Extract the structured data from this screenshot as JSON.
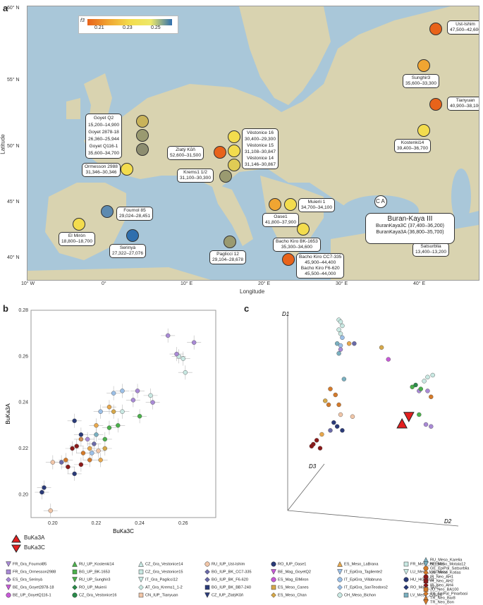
{
  "panels": {
    "a": "a",
    "b": "b",
    "c": "c"
  },
  "map": {
    "xlabel": "Longitude",
    "ylabel": "Latitude",
    "lon_ticks": [
      "10° W",
      "0°",
      "10° E",
      "20° E",
      "30° E",
      "40° E"
    ],
    "lat_ticks": [
      "60° N",
      "55° N",
      "50° N",
      "45° N",
      "40° N"
    ],
    "scale_title": "f3",
    "scale_ticks": [
      "0.21",
      "0.23",
      "0.25"
    ],
    "colors": {
      "sea": "#a9c7d9",
      "land": "#d9d3b0",
      "low": "#e8631a",
      "mid": "#f3dc4d",
      "high": "#2f6fae"
    },
    "sites": [
      {
        "name": "Ust-Ishim",
        "dates": "47,500–42,600"
      },
      {
        "name": "Sunghir3",
        "dates": "35,600–33,300"
      },
      {
        "name": "Tianyuan",
        "dates": "40,900–38,100"
      },
      {
        "name": "Kostenki14",
        "dates": "39,400–36,700"
      },
      {
        "name": "Goyet Q2",
        "dates": "15,200–14,900"
      },
      {
        "name": "Goyet 2878-18",
        "dates": "26,360–25,944"
      },
      {
        "name": "Goyet Q116-1",
        "dates": "35,600–34,700"
      },
      {
        "name": "Ormesson 2988",
        "dates": "31,346–30,346"
      },
      {
        "name": "Zlatý Kůň",
        "dates": "52,600–31,500"
      },
      {
        "name": "Věstonice 16",
        "dates": "30,400–29,300"
      },
      {
        "name": "Věstonice 15",
        "dates": "31,108–30,847"
      },
      {
        "name": "Věstonice 14",
        "dates": "31,146–30,867"
      },
      {
        "name": "Krems1 1/2",
        "dates": "31,100–30,300"
      },
      {
        "name": "Fournol 85",
        "dates": "29,024–28,451"
      },
      {
        "name": "Muierii 1",
        "dates": "34,700–34,100"
      },
      {
        "name": "Oase1",
        "dates": "41,800–37,900"
      },
      {
        "name": "El Mirón",
        "dates": "18,800–18,700"
      },
      {
        "name": "Serinyà",
        "dates": "27,322–27,076"
      },
      {
        "name": "Bacho Kiro BK-1653",
        "dates": "35,300–34,600"
      },
      {
        "name": "Paglicci 12",
        "dates": "29,104–28,678"
      },
      {
        "name": "Bacho Kiro CC7-335",
        "dates": "45,900–44,400"
      },
      {
        "name": "Bacho Kiro F6-620",
        "dates": "45,500–44,000"
      },
      {
        "name": "Satsurblia",
        "dates": "13,400–13,200"
      }
    ],
    "buran": {
      "title": "Buran-Kaya III",
      "line1": "BuranKaya3C (37,400–36,200)",
      "line2": "BuranKaya3A (36,800–35,700)",
      "ca": "C A"
    }
  },
  "chart_data": [
    {
      "type": "scatter",
      "panel": "b",
      "xlabel": "BuKa3C",
      "ylabel": "BuKa3A",
      "xlim": [
        0.19,
        0.275
      ],
      "ylim": [
        0.19,
        0.28
      ],
      "xticks": [
        "0.20",
        "0.22",
        "0.24",
        "0.26"
      ],
      "yticks": [
        "0.20",
        "0.22",
        "0.24",
        "0.26",
        "0.28"
      ],
      "points": [
        {
          "x": 0.265,
          "y": 0.266,
          "c": "#a98ad6"
        },
        {
          "x": 0.253,
          "y": 0.269,
          "c": "#a98ad6"
        },
        {
          "x": 0.258,
          "y": 0.26,
          "c": "#c9e9e3"
        },
        {
          "x": 0.26,
          "y": 0.259,
          "c": "#c9e9e3"
        },
        {
          "x": 0.257,
          "y": 0.261,
          "c": "#a98ad6"
        },
        {
          "x": 0.261,
          "y": 0.253,
          "c": "#c9e9e3"
        },
        {
          "x": 0.239,
          "y": 0.245,
          "c": "#a98ad6"
        },
        {
          "x": 0.245,
          "y": 0.243,
          "c": "#c9e9e3"
        },
        {
          "x": 0.246,
          "y": 0.24,
          "c": "#a98ad6"
        },
        {
          "x": 0.237,
          "y": 0.241,
          "c": "#a98ad6"
        },
        {
          "x": 0.232,
          "y": 0.245,
          "c": "#9cc0e8"
        },
        {
          "x": 0.228,
          "y": 0.244,
          "c": "#9cc0e8"
        },
        {
          "x": 0.24,
          "y": 0.234,
          "c": "#4cb04c"
        },
        {
          "x": 0.232,
          "y": 0.236,
          "c": "#c9e9e3"
        },
        {
          "x": 0.228,
          "y": 0.236,
          "c": "#d6a84a"
        },
        {
          "x": 0.226,
          "y": 0.238,
          "c": "#e8a84c"
        },
        {
          "x": 0.222,
          "y": 0.236,
          "c": "#9cc0e8"
        },
        {
          "x": 0.23,
          "y": 0.23,
          "c": "#4cb04c"
        },
        {
          "x": 0.226,
          "y": 0.229,
          "c": "#4cb04c"
        },
        {
          "x": 0.22,
          "y": 0.23,
          "c": "#e8a84c"
        },
        {
          "x": 0.224,
          "y": 0.224,
          "c": "#4cb04c"
        },
        {
          "x": 0.22,
          "y": 0.226,
          "c": "#7ab0c0"
        },
        {
          "x": 0.213,
          "y": 0.224,
          "c": "#d47a2a"
        },
        {
          "x": 0.216,
          "y": 0.224,
          "c": "#a98ad6"
        },
        {
          "x": 0.219,
          "y": 0.222,
          "c": "#6a6aa8"
        },
        {
          "x": 0.217,
          "y": 0.22,
          "c": "#e8a84c"
        },
        {
          "x": 0.221,
          "y": 0.219,
          "c": "#f1c6a8"
        },
        {
          "x": 0.218,
          "y": 0.218,
          "c": "#9cc0e8"
        },
        {
          "x": 0.214,
          "y": 0.218,
          "c": "#d47a2a"
        },
        {
          "x": 0.211,
          "y": 0.221,
          "c": "#8b1a1a"
        },
        {
          "x": 0.209,
          "y": 0.22,
          "c": "#8b1a1a"
        },
        {
          "x": 0.213,
          "y": 0.213,
          "c": "#8b1a1a"
        },
        {
          "x": 0.217,
          "y": 0.215,
          "c": "#d47a2a"
        },
        {
          "x": 0.206,
          "y": 0.215,
          "c": "#d47a2a"
        },
        {
          "x": 0.207,
          "y": 0.212,
          "c": "#8b1a1a"
        },
        {
          "x": 0.21,
          "y": 0.209,
          "c": "#2a3a78"
        },
        {
          "x": 0.204,
          "y": 0.214,
          "c": "#6a6aa8"
        },
        {
          "x": 0.2,
          "y": 0.214,
          "c": "#f1c6a8"
        },
        {
          "x": 0.21,
          "y": 0.232,
          "c": "#2a3a78"
        },
        {
          "x": 0.213,
          "y": 0.226,
          "c": "#2a3a78"
        },
        {
          "x": 0.196,
          "y": 0.203,
          "c": "#2a3a78"
        },
        {
          "x": 0.195,
          "y": 0.201,
          "c": "#2a3a78"
        },
        {
          "x": 0.199,
          "y": 0.193,
          "c": "#f1c6a8"
        },
        {
          "x": 0.222,
          "y": 0.215,
          "c": "#e8a84c"
        },
        {
          "x": 0.224,
          "y": 0.22,
          "c": "#d6a84a"
        }
      ]
    },
    {
      "type": "scatter",
      "panel": "c",
      "axis_labels": [
        "D1",
        "D2",
        "D3"
      ],
      "points": [
        {
          "x": 0.3,
          "y": 0.98,
          "c": "#c9e9e3"
        },
        {
          "x": 0.31,
          "y": 0.97,
          "c": "#c9e9e3"
        },
        {
          "x": 0.32,
          "y": 0.95,
          "c": "#c9e9e3"
        },
        {
          "x": 0.3,
          "y": 0.93,
          "c": "#c9e9e3"
        },
        {
          "x": 0.31,
          "y": 0.91,
          "c": "#c9e9e3"
        },
        {
          "x": 0.32,
          "y": 0.89,
          "c": "#9cc0e8"
        },
        {
          "x": 0.29,
          "y": 0.86,
          "c": "#7ab0c0"
        },
        {
          "x": 0.31,
          "y": 0.85,
          "c": "#9cc0e8"
        },
        {
          "x": 0.36,
          "y": 0.86,
          "c": "#e8a84c"
        },
        {
          "x": 0.39,
          "y": 0.86,
          "c": "#6a6aa8"
        },
        {
          "x": 0.31,
          "y": 0.83,
          "c": "#a98ad6"
        },
        {
          "x": 0.3,
          "y": 0.81,
          "c": "#7ab0c0"
        },
        {
          "x": 0.55,
          "y": 0.84,
          "c": "#d6a84a"
        },
        {
          "x": 0.59,
          "y": 0.78,
          "c": "#c65ad6"
        },
        {
          "x": 0.33,
          "y": 0.68,
          "c": "#7ab0c0"
        },
        {
          "x": 0.82,
          "y": 0.69,
          "c": "#c9e9e3"
        },
        {
          "x": 0.85,
          "y": 0.7,
          "c": "#c9e9e3"
        },
        {
          "x": 0.8,
          "y": 0.67,
          "c": "#c9e9e3"
        },
        {
          "x": 0.73,
          "y": 0.64,
          "c": "#4cb04c"
        },
        {
          "x": 0.75,
          "y": 0.65,
          "c": "#2a8a4a"
        },
        {
          "x": 0.77,
          "y": 0.62,
          "c": "#a98ad6"
        },
        {
          "x": 0.78,
          "y": 0.63,
          "c": "#4cb04c"
        },
        {
          "x": 0.82,
          "y": 0.62,
          "c": "#a98ad6"
        },
        {
          "x": 0.84,
          "y": 0.59,
          "c": "#d47a2a"
        },
        {
          "x": 0.25,
          "y": 0.63,
          "c": "#d47a2a"
        },
        {
          "x": 0.28,
          "y": 0.6,
          "c": "#d47a2a"
        },
        {
          "x": 0.22,
          "y": 0.57,
          "c": "#d6a84a"
        },
        {
          "x": 0.24,
          "y": 0.55,
          "c": "#d47a2a"
        },
        {
          "x": 0.3,
          "y": 0.55,
          "c": "#d47a2a"
        },
        {
          "x": 0.31,
          "y": 0.5,
          "c": "#f1c6a8"
        },
        {
          "x": 0.38,
          "y": 0.49,
          "c": "#f1c6a8"
        },
        {
          "x": 0.27,
          "y": 0.46,
          "c": "#2a3a78"
        },
        {
          "x": 0.29,
          "y": 0.44,
          "c": "#2a3a78"
        },
        {
          "x": 0.32,
          "y": 0.42,
          "c": "#2a3a78"
        },
        {
          "x": 0.25,
          "y": 0.42,
          "c": "#6a6aa8"
        },
        {
          "x": 0.2,
          "y": 0.4,
          "c": "#e8a84c"
        },
        {
          "x": 0.17,
          "y": 0.37,
          "c": "#8b1a1a"
        },
        {
          "x": 0.15,
          "y": 0.35,
          "c": "#8b1a1a"
        },
        {
          "x": 0.14,
          "y": 0.34,
          "c": "#8b1a1a"
        },
        {
          "x": 0.19,
          "y": 0.33,
          "c": "#8b1a1a"
        },
        {
          "x": 0.81,
          "y": 0.45,
          "c": "#a98ad6"
        },
        {
          "x": 0.84,
          "y": 0.44,
          "c": "#a98ad6"
        },
        {
          "x": 0.77,
          "y": 0.5,
          "c": "#4cb04c"
        }
      ],
      "buka3a": {
        "x": 0.67,
        "y": 0.45
      },
      "buka3c": {
        "x": 0.71,
        "y": 0.49
      }
    }
  ],
  "legend": {
    "buka3a": "BuKa3A",
    "buka3c": "BuKa3C",
    "items": [
      {
        "label": "FR_Gra_Fournol85",
        "c": "#a98ad6",
        "shape": "tri-down"
      },
      {
        "label": "FR_Gra_Ormesson2988",
        "c": "#a98ad6",
        "shape": "square"
      },
      {
        "label": "ES_Gra_Serinyà",
        "c": "#a98ad6",
        "shape": "diamond"
      },
      {
        "label": "BE_Gra_Goyet2878-18",
        "c": "#c65ad6",
        "shape": "tri-down"
      },
      {
        "label": "BE_UP_GoyetQ116-1",
        "c": "#c65ad6",
        "shape": "circle"
      },
      {
        "label": "RU_UP_Kostenki14",
        "c": "#4cb04c",
        "shape": "tri-up"
      },
      {
        "label": "BG_UP_BK-1653",
        "c": "#4cb04c",
        "shape": "square"
      },
      {
        "label": "RU_UP_Sunghir3",
        "c": "#4cb04c",
        "shape": "tri-down"
      },
      {
        "label": "RO_UP_Muierii",
        "c": "#2a8a4a",
        "shape": "diamond"
      },
      {
        "label": "CZ_Gra_Vestonice16",
        "c": "#2a8a4a",
        "shape": "circle"
      },
      {
        "label": "CZ_Gra_Vestonice14",
        "c": "#c9e9e3",
        "shape": "tri-up"
      },
      {
        "label": "CZ_Gra_Vestonice15",
        "c": "#c9e9e3",
        "shape": "square"
      },
      {
        "label": "IT_Gra_Paglicci12",
        "c": "#c9e9e3",
        "shape": "tri-down"
      },
      {
        "label": "AT_Gra_Krems1_1-2",
        "c": "#c9e9e3",
        "shape": "diamond"
      },
      {
        "label": "CN_IUP_Tianyuan",
        "c": "#f1c6a8",
        "shape": "square"
      },
      {
        "label": "RU_IUP_Ust-Ishim",
        "c": "#f1c6a8",
        "shape": "circle"
      },
      {
        "label": "BG_IUP_BK_CC7-335",
        "c": "#6a6aa8",
        "shape": "diamond"
      },
      {
        "label": "BG_IUP_BK_F6-620",
        "c": "#6a6aa8",
        "shape": "diamond"
      },
      {
        "label": "BG_IUP_BK_BB7-240",
        "c": "#2a3a78",
        "shape": "square"
      },
      {
        "label": "CZ_IUP_ZlatýKůň",
        "c": "#2a3a78",
        "shape": "tri-down"
      },
      {
        "label": "RO_IUP_Oase1",
        "c": "#2a3a78",
        "shape": "circle"
      },
      {
        "label": "BE_Mag_GoyetQ2",
        "c": "#c65ad6",
        "shape": "tri-down"
      },
      {
        "label": "ES_Mag_ElMiron",
        "c": "#c65ad6",
        "shape": "circle"
      },
      {
        "label": "ES_Meso_Canes",
        "c": "#d6a84a",
        "shape": "square"
      },
      {
        "label": "ES_Meso_Chan",
        "c": "#d6a84a",
        "shape": "diamond"
      },
      {
        "label": "ES_Meso_LaBrana",
        "c": "#e8a84c",
        "shape": "tri-up"
      },
      {
        "label": "IT_EpiGra_Tagliente2",
        "c": "#9cc0e8",
        "shape": "tri-down"
      },
      {
        "label": "IT_EpiGra_Villabruna",
        "c": "#9cc0e8",
        "shape": "circle"
      },
      {
        "label": "IT_EpiGra_SanTeodoro2",
        "c": "#9cc0e8",
        "shape": "diamond"
      },
      {
        "label": "CH_Meso_Bichon",
        "c": "#c9e9e3",
        "shape": "circle"
      },
      {
        "label": "FR_Meso_PER503",
        "c": "#c9e9e3",
        "shape": "square"
      },
      {
        "label": "LU_Meso_Loschbour",
        "c": "#c9e9e3",
        "shape": "tri-down"
      },
      {
        "label": "HU_HG_KO1",
        "c": "#2a3a78",
        "shape": "circle"
      },
      {
        "label": "RO_Meso_SC2",
        "c": "#2a3a78",
        "shape": "diamond"
      },
      {
        "label": "LV_Meso_ZVE/25",
        "c": "#7ab0c0",
        "shape": "square"
      },
      {
        "label": "RU_Meso_Karelia",
        "c": "#7ab0c0",
        "shape": "tri-up"
      },
      {
        "label": "SE_Meso_Motala12",
        "c": "#7ab0c0",
        "shape": "tri-down"
      },
      {
        "label": "GE_EpiPal_Satsurblia",
        "c": "#d47a2a",
        "shape": "circle"
      },
      {
        "label": "GE_Meso_Kotias",
        "c": "#d47a2a",
        "shape": "diamond"
      },
      {
        "label": "IR_Neo_AH1",
        "c": "#8b1a1a",
        "shape": "circle"
      },
      {
        "label": "IR_Neo_AH2",
        "c": "#8b1a1a",
        "shape": "square"
      },
      {
        "label": "IR_Neo_AH4",
        "c": "#8b1a1a",
        "shape": "diamond"
      },
      {
        "label": "JO_Neo_BA100",
        "c": "#d47a2a",
        "shape": "square"
      },
      {
        "label": "TR_EpiPal_Pinarbasi",
        "c": "#d47a2a",
        "shape": "diamond"
      },
      {
        "label": "TR_Neo_Bar8",
        "c": "#d47a2a",
        "shape": "tri-up"
      },
      {
        "label": "TR_Neo_Bon",
        "c": "#d47a2a",
        "shape": "tri-down"
      }
    ]
  }
}
